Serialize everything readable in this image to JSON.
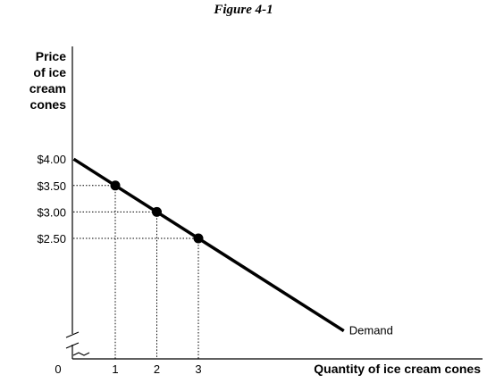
{
  "figure": {
    "title": "Figure 4-1"
  },
  "chart_data": {
    "type": "line",
    "ylabel": [
      "Price",
      "of ice",
      "cream",
      "cones"
    ],
    "xlabel": "Quantity of ice cream cones",
    "x_origin_label": "0",
    "x_ticks": [
      1,
      2,
      3
    ],
    "y_tick_labels": [
      {
        "value": 4.0,
        "label": "$4.00"
      },
      {
        "value": 3.5,
        "label": "$3.50"
      },
      {
        "value": 3.0,
        "label": "$3.00"
      },
      {
        "value": 2.5,
        "label": "$2.50"
      }
    ],
    "series": [
      {
        "name": "Demand",
        "line": [
          {
            "x": 0,
            "y": 4.0
          },
          {
            "x": 6.5,
            "y": 0.75
          }
        ],
        "points": [
          {
            "x": 1,
            "y": 3.5
          },
          {
            "x": 2,
            "y": 3.0
          },
          {
            "x": 3,
            "y": 2.5
          }
        ]
      }
    ],
    "annotations": [
      {
        "text": "Demand",
        "x": 6.5,
        "y": 0.75
      }
    ],
    "axis_break": true,
    "grid": false,
    "legend": "none"
  }
}
